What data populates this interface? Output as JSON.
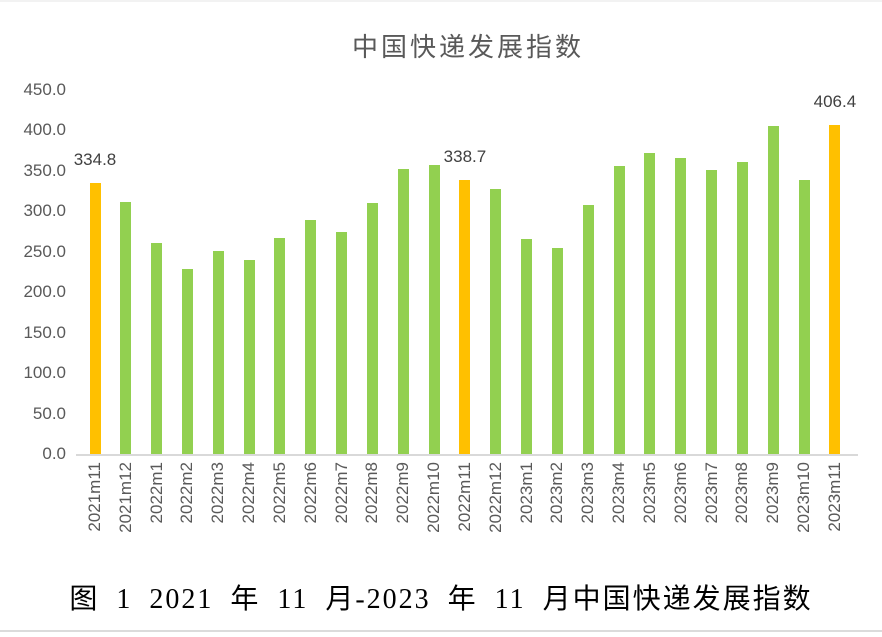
{
  "page": {
    "caption": "图 1 2021 年 11 月-2023 年 11 月中国快递发展指数"
  },
  "chart_data": {
    "type": "bar",
    "title": "中国快递发展指数",
    "categories": [
      "2021m11",
      "2021m12",
      "2022m1",
      "2022m2",
      "2022m3",
      "2022m4",
      "2022m5",
      "2022m6",
      "2022m7",
      "2022m8",
      "2022m9",
      "2022m10",
      "2022m11",
      "2022m12",
      "2023m1",
      "2023m2",
      "2023m3",
      "2023m4",
      "2023m5",
      "2023m6",
      "2023m7",
      "2023m8",
      "2023m9",
      "2023m10",
      "2023m11"
    ],
    "values": [
      334.8,
      311,
      260,
      228,
      250,
      240,
      267,
      289,
      274,
      310,
      352,
      357,
      338.7,
      327,
      265,
      254,
      307,
      355,
      371,
      366,
      351,
      361,
      405,
      338,
      406.4
    ],
    "data_labels": [
      "334.8",
      null,
      null,
      null,
      null,
      null,
      null,
      null,
      null,
      null,
      null,
      null,
      "338.7",
      null,
      null,
      null,
      null,
      null,
      null,
      null,
      null,
      null,
      null,
      null,
      "406.4"
    ],
    "highlight_indices": [
      0,
      12,
      24
    ],
    "colors": {
      "bar_default": "#92D050",
      "bar_highlight": "#FFC000",
      "title_text": "#595959",
      "axis_text": "#595959",
      "data_label_text": "#404040",
      "axis_line": "#D9D9D9"
    },
    "xlabel": "",
    "ylabel": "",
    "ylim": [
      0,
      450
    ],
    "y_tick_step": 50,
    "y_ticks": [
      "0.0",
      "50.0",
      "100.0",
      "150.0",
      "200.0",
      "250.0",
      "300.0",
      "350.0",
      "400.0",
      "450.0"
    ],
    "x_label_rotation": -90,
    "grid": false,
    "legend": false
  }
}
